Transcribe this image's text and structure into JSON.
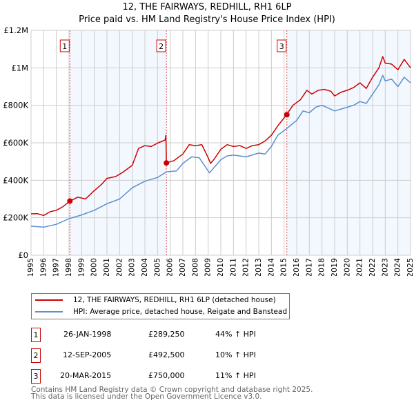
{
  "chart_data": {
    "type": "line",
    "title": "12, THE FAIRWAYS, REDHILL, RH1 6LP",
    "subtitle": "Price paid vs. HM Land Registry's House Price Index (HPI)",
    "xlim": [
      1995,
      2025
    ],
    "ylim": [
      0,
      1200000
    ],
    "x_ticks": [
      "1995",
      "1996",
      "1997",
      "1998",
      "1999",
      "2000",
      "2001",
      "2002",
      "2003",
      "2004",
      "2005",
      "2006",
      "2007",
      "2008",
      "2009",
      "2010",
      "2011",
      "2012",
      "2013",
      "2014",
      "2015",
      "2016",
      "2017",
      "2018",
      "2019",
      "2020",
      "2021",
      "2022",
      "2023",
      "2024",
      "2025"
    ],
    "y_ticks": [
      {
        "v": 0,
        "label": "£0"
      },
      {
        "v": 200000,
        "label": "£200K"
      },
      {
        "v": 400000,
        "label": "£400K"
      },
      {
        "v": 600000,
        "label": "£600K"
      },
      {
        "v": 800000,
        "label": "£800K"
      },
      {
        "v": 1000000,
        "label": "£1M"
      },
      {
        "v": 1200000,
        "label": "£1.2M"
      }
    ],
    "grid": true,
    "series": [
      {
        "name": "12, THE FAIRWAYS, REDHILL, RH1 6LP (detached house)",
        "color": "#cc0000",
        "x": [
          1995,
          1995.5,
          1996,
          1996.5,
          1997,
          1997.5,
          1998.07,
          1998.7,
          1999.3,
          2000,
          2000.6,
          2001,
          2001.7,
          2002.3,
          2003,
          2003.5,
          2004,
          2004.5,
          2005,
          2005.6,
          2005.66,
          2005.7,
          2006.3,
          2007,
          2007.5,
          2008,
          2008.5,
          2009,
          2009.2,
          2009.5,
          2010,
          2010.5,
          2011,
          2011.5,
          2012,
          2012.5,
          2013,
          2013.5,
          2014,
          2014.5,
          2015.2,
          2015.7,
          2016.3,
          2016.8,
          2017.2,
          2017.7,
          2018.2,
          2018.7,
          2019,
          2019.5,
          2020,
          2020.5,
          2021,
          2021.5,
          2022,
          2022.5,
          2022.8,
          2023,
          2023.5,
          2024,
          2024.5,
          2025
        ],
        "y": [
          221000,
          222000,
          212000,
          232000,
          240000,
          258000,
          289250,
          310000,
          300000,
          345000,
          380000,
          410000,
          420000,
          445000,
          480000,
          570000,
          585000,
          580000,
          598000,
          615000,
          640000,
          492500,
          505000,
          540000,
          590000,
          585000,
          590000,
          520000,
          490000,
          515000,
          565000,
          590000,
          580000,
          585000,
          570000,
          585000,
          590000,
          610000,
          640000,
          690000,
          750000,
          800000,
          830000,
          880000,
          860000,
          880000,
          885000,
          875000,
          850000,
          870000,
          880000,
          895000,
          920000,
          890000,
          950000,
          1000000,
          1060000,
          1025000,
          1020000,
          990000,
          1045000,
          1000000
        ]
      },
      {
        "name": "HPI: Average price, detached house, Reigate and Banstead",
        "color": "#5b8fd0",
        "x": [
          1995,
          1996,
          1997,
          1998,
          1999,
          2000,
          2001,
          2002,
          2003,
          2004,
          2005,
          2005.7,
          2006.5,
          2007,
          2007.7,
          2008.3,
          2009.1,
          2009.5,
          2010,
          2010.5,
          2011,
          2012,
          2013,
          2013.5,
          2014,
          2014.5,
          2015.2,
          2016,
          2016.5,
          2017,
          2017.5,
          2018,
          2018.5,
          2019,
          2019.5,
          2020,
          2020.5,
          2021,
          2021.5,
          2022,
          2022.5,
          2022.8,
          2023,
          2023.5,
          2024,
          2024.5,
          2025
        ],
        "y": [
          155000,
          150000,
          165000,
          195000,
          215000,
          240000,
          275000,
          300000,
          360000,
          395000,
          415000,
          445000,
          450000,
          490000,
          525000,
          520000,
          440000,
          470000,
          510000,
          530000,
          535000,
          525000,
          545000,
          540000,
          580000,
          640000,
          675000,
          720000,
          770000,
          760000,
          790000,
          800000,
          785000,
          770000,
          780000,
          790000,
          800000,
          820000,
          810000,
          860000,
          910000,
          960000,
          930000,
          940000,
          900000,
          950000,
          920000
        ]
      }
    ],
    "sales": [
      {
        "n": "1",
        "x": 1998.07,
        "y": 289250,
        "date": "26-JAN-1998",
        "price": "£289,250",
        "hpi": "44% ↑ HPI"
      },
      {
        "n": "2",
        "x": 2005.7,
        "y": 492500,
        "date": "12-SEP-2005",
        "price": "£492,500",
        "hpi": "10% ↑ HPI"
      },
      {
        "n": "3",
        "x": 2015.22,
        "y": 750000,
        "date": "20-MAR-2015",
        "price": "£750,000",
        "hpi": "11% ↑ HPI"
      }
    ],
    "legend_placement": "below"
  },
  "footer": {
    "line1": "Contains HM Land Registry data © Crown copyright and database right 2025.",
    "line2": "This data is licensed under the Open Government Licence v3.0."
  }
}
